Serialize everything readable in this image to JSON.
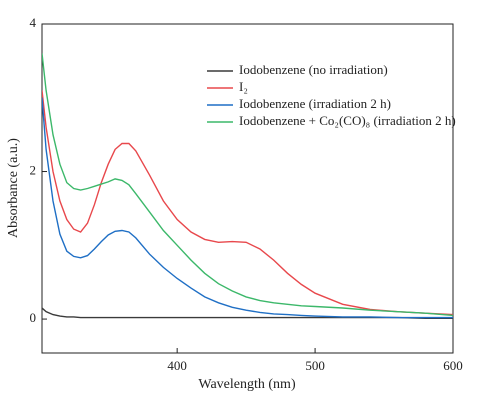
{
  "chart_data": {
    "type": "line",
    "x_label": "Wavelength (nm)",
    "y_label": "Absorbance (a.u.)",
    "x": [
      302,
      305,
      310,
      315,
      320,
      325,
      330,
      335,
      340,
      345,
      350,
      355,
      360,
      365,
      370,
      380,
      390,
      400,
      410,
      420,
      430,
      440,
      450,
      460,
      470,
      480,
      490,
      500,
      520,
      540,
      560,
      580,
      600
    ],
    "series": [
      {
        "name": "Iodobenzene (no irradiation)",
        "color": "#3a3a3a",
        "values": [
          0.15,
          0.1,
          0.06,
          0.04,
          0.03,
          0.03,
          0.02,
          0.02,
          0.02,
          0.02,
          0.02,
          0.02,
          0.02,
          0.02,
          0.02,
          0.02,
          0.02,
          0.02,
          0.02,
          0.02,
          0.02,
          0.02,
          0.02,
          0.02,
          0.02,
          0.02,
          0.02,
          0.02,
          0.02,
          0.02,
          0.02,
          0.01,
          0.01
        ]
      },
      {
        "name": "I₂",
        "color": "#e8484c",
        "values": [
          3.1,
          2.6,
          2.0,
          1.6,
          1.35,
          1.22,
          1.18,
          1.3,
          1.55,
          1.85,
          2.1,
          2.3,
          2.38,
          2.38,
          2.28,
          1.95,
          1.6,
          1.35,
          1.18,
          1.08,
          1.04,
          1.05,
          1.04,
          0.95,
          0.8,
          0.62,
          0.47,
          0.35,
          0.2,
          0.13,
          0.1,
          0.08,
          0.06
        ]
      },
      {
        "name": "Iodobenzene (irradiation 2 h)",
        "color": "#1f6fc5",
        "values": [
          3.0,
          2.3,
          1.6,
          1.15,
          0.92,
          0.85,
          0.83,
          0.86,
          0.95,
          1.05,
          1.14,
          1.19,
          1.2,
          1.18,
          1.1,
          0.88,
          0.7,
          0.55,
          0.42,
          0.3,
          0.22,
          0.16,
          0.12,
          0.09,
          0.07,
          0.06,
          0.05,
          0.04,
          0.03,
          0.03,
          0.02,
          0.02,
          0.02
        ]
      },
      {
        "name": "Iodobenzene + Co₂(CO)₈ (irradiation 2 h)",
        "color": "#3cb86a",
        "values": [
          3.6,
          3.1,
          2.5,
          2.1,
          1.85,
          1.77,
          1.75,
          1.77,
          1.8,
          1.83,
          1.86,
          1.9,
          1.88,
          1.82,
          1.7,
          1.45,
          1.2,
          1.0,
          0.8,
          0.62,
          0.48,
          0.38,
          0.3,
          0.25,
          0.22,
          0.2,
          0.18,
          0.17,
          0.15,
          0.12,
          0.1,
          0.08,
          0.05
        ]
      }
    ],
    "xlim": [
      302,
      600
    ],
    "xticks": [
      400,
      500,
      600
    ],
    "ylim": [
      -0.46,
      4
    ],
    "yticks": [
      0,
      2,
      4
    ],
    "legend": "upper right"
  }
}
